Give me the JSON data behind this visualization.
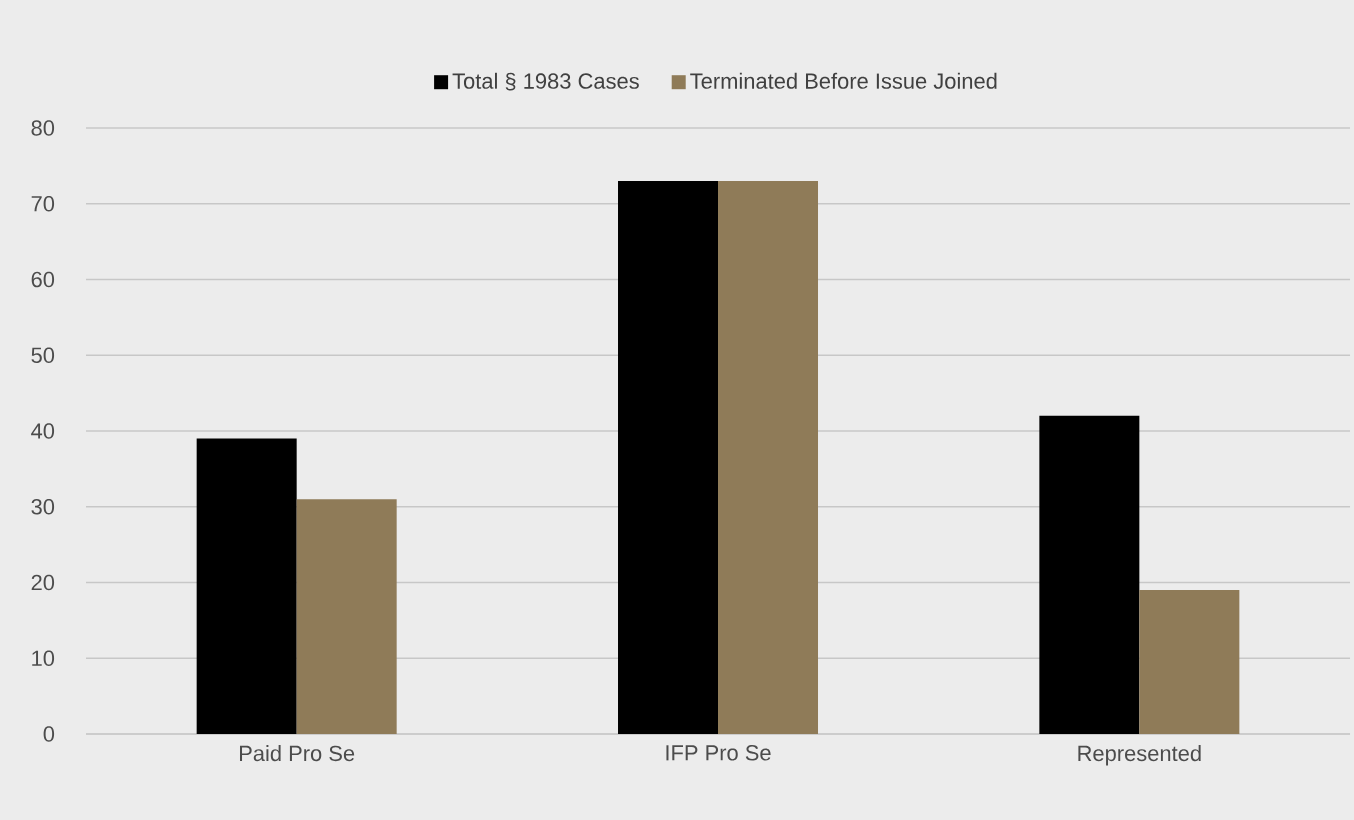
{
  "chart_data": {
    "type": "bar",
    "categories": [
      "Paid Pro Se",
      "IFP Pro Se",
      "Represented"
    ],
    "series": [
      {
        "name": "Total § 1983 Cases",
        "color": "#000000",
        "values": [
          39,
          73,
          42
        ]
      },
      {
        "name": "Terminated Before Issue Joined",
        "color": "#8f7b58",
        "values": [
          31,
          73,
          19
        ]
      }
    ],
    "ylim": [
      0,
      80
    ],
    "yticks": [
      0,
      10,
      20,
      30,
      40,
      50,
      60,
      70,
      80
    ],
    "grid": "y",
    "legend": "top"
  }
}
